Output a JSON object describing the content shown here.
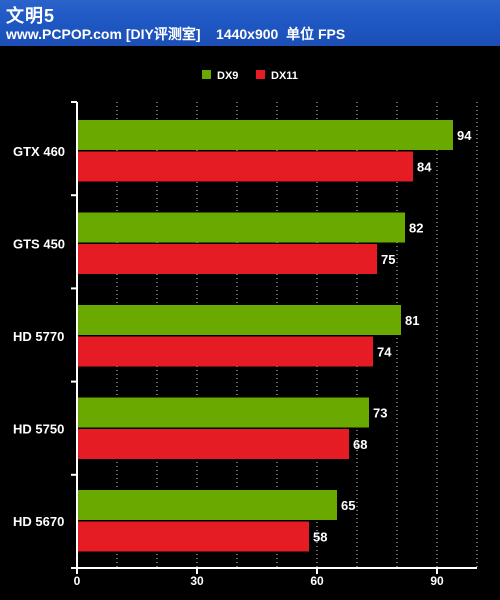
{
  "header": {
    "title": "文明5",
    "subtitle": "www.PCPOP.com [DIY评测室]    1440x900  单位 FPS"
  },
  "colors": {
    "header_bg": "#1f58c4",
    "background": "#000000",
    "dx9": "#6aaa00",
    "dx11": "#e51c23",
    "text": "#ffffff"
  },
  "chart_data": {
    "type": "bar",
    "orientation": "horizontal",
    "title": "",
    "xlabel": "",
    "ylabel": "",
    "categories": [
      "GTX 460",
      "GTS 450",
      "HD 5770",
      "HD 5750",
      "HD 5670"
    ],
    "series": [
      {
        "name": "DX9",
        "color": "#6aaa00",
        "values": [
          94,
          82,
          81,
          73,
          65
        ]
      },
      {
        "name": "DX11",
        "color": "#e51c23",
        "values": [
          84,
          75,
          74,
          68,
          58
        ]
      }
    ],
    "xlim": [
      0,
      100
    ],
    "xticks": [
      0,
      30,
      60,
      90
    ],
    "grid": "vertical dotted",
    "legend": "top-center"
  }
}
